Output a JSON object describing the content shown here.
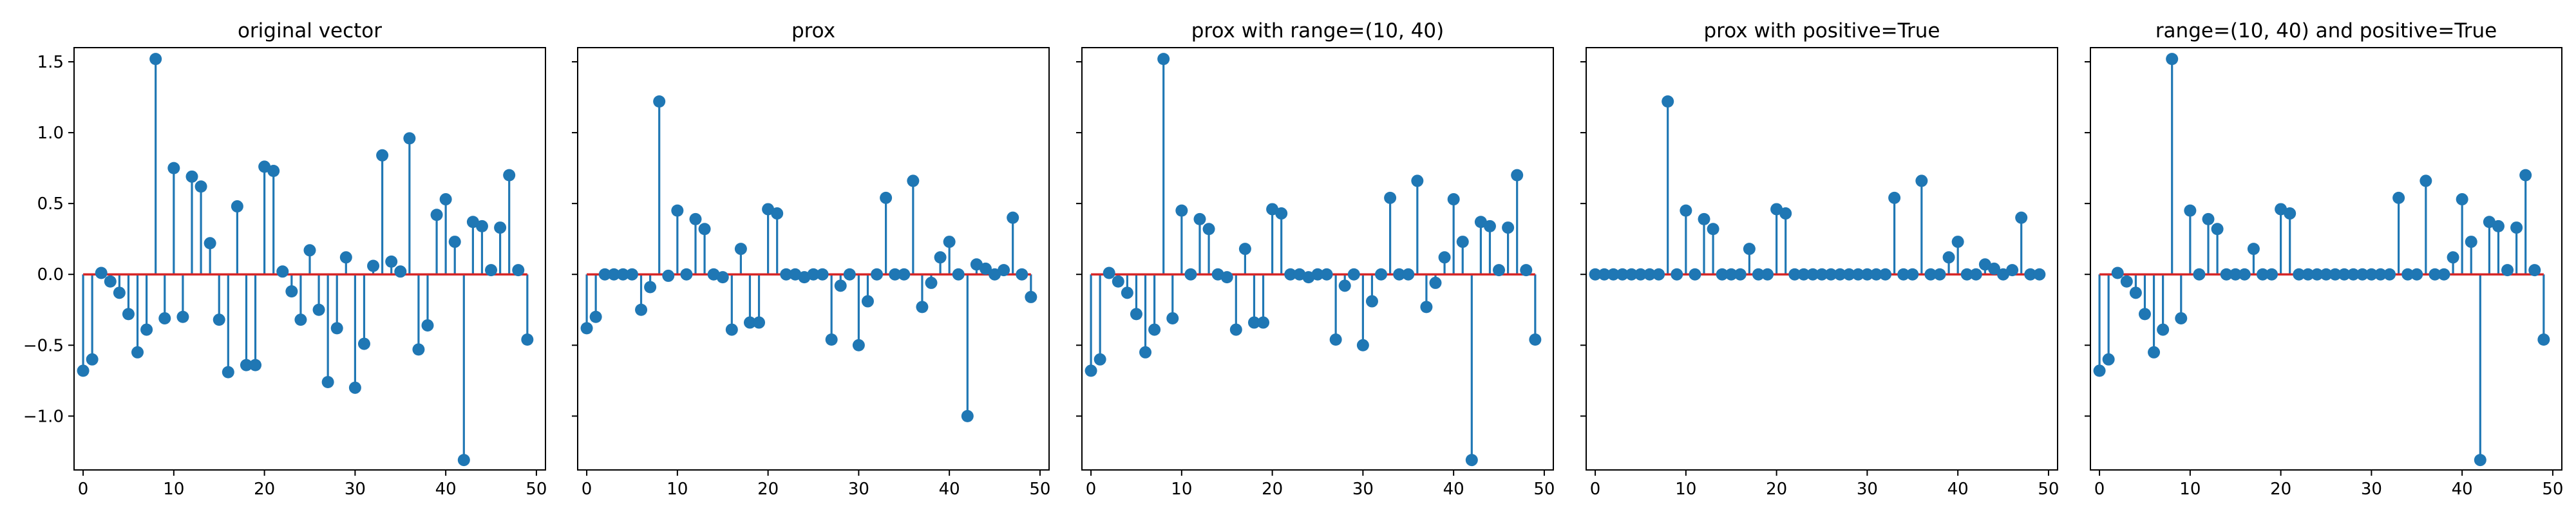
{
  "chart_data": [
    {
      "type": "stem",
      "title": "original vector",
      "x": [
        0,
        1,
        2,
        3,
        4,
        5,
        6,
        7,
        8,
        9,
        10,
        11,
        12,
        13,
        14,
        15,
        16,
        17,
        18,
        19,
        20,
        21,
        22,
        23,
        24,
        25,
        26,
        27,
        28,
        29,
        30,
        31,
        32,
        33,
        34,
        35,
        36,
        37,
        38,
        39,
        40,
        41,
        42,
        43,
        44,
        45,
        46,
        47,
        48,
        49
      ],
      "values": [
        -0.68,
        -0.6,
        0.01,
        -0.05,
        -0.13,
        -0.28,
        -0.55,
        -0.39,
        1.52,
        -0.31,
        0.75,
        -0.3,
        0.69,
        0.62,
        0.22,
        -0.32,
        -0.69,
        0.48,
        -0.64,
        -0.64,
        0.76,
        0.73,
        0.02,
        -0.12,
        -0.32,
        0.17,
        -0.25,
        -0.76,
        -0.38,
        0.12,
        -0.8,
        -0.49,
        0.06,
        0.84,
        0.09,
        0.02,
        0.96,
        -0.53,
        -0.36,
        0.42,
        0.53,
        0.23,
        -1.31,
        0.37,
        0.34,
        0.03,
        0.33,
        0.7,
        0.03,
        -0.46
      ],
      "xlim": [
        -1,
        51
      ],
      "ylim": [
        -1.38,
        1.6
      ],
      "xticks": [
        0,
        10,
        20,
        30,
        40,
        50
      ],
      "yticks": [
        -1.0,
        -0.5,
        0.0,
        0.5,
        1.0,
        1.5
      ],
      "ytick_labels_shown": true
    },
    {
      "type": "stem",
      "title": "prox",
      "x": [
        0,
        1,
        2,
        3,
        4,
        5,
        6,
        7,
        8,
        9,
        10,
        11,
        12,
        13,
        14,
        15,
        16,
        17,
        18,
        19,
        20,
        21,
        22,
        23,
        24,
        25,
        26,
        27,
        28,
        29,
        30,
        31,
        32,
        33,
        34,
        35,
        36,
        37,
        38,
        39,
        40,
        41,
        42,
        43,
        44,
        45,
        46,
        47,
        48,
        49
      ],
      "values": [
        -0.38,
        -0.3,
        0,
        0,
        0,
        0,
        -0.25,
        -0.09,
        1.22,
        -0.01,
        0.45,
        0,
        0.39,
        0.32,
        0,
        -0.02,
        -0.39,
        0.18,
        -0.34,
        -0.34,
        0.46,
        0.43,
        0,
        0,
        -0.02,
        0,
        0,
        -0.46,
        -0.08,
        0,
        -0.5,
        -0.19,
        0,
        0.54,
        0,
        0,
        0.66,
        -0.23,
        -0.06,
        0.12,
        0.23,
        0,
        -1.0,
        0.07,
        0.04,
        0,
        0.03,
        0.4,
        0,
        -0.16
      ],
      "xlim": [
        -1,
        51
      ],
      "ylim": [
        -1.38,
        1.6
      ],
      "xticks": [
        0,
        10,
        20,
        30,
        40,
        50
      ],
      "yticks": [
        -1.0,
        -0.5,
        0.0,
        0.5,
        1.0,
        1.5
      ],
      "ytick_labels_shown": false
    },
    {
      "type": "stem",
      "title": "prox with range=(10, 40)",
      "x": [
        0,
        1,
        2,
        3,
        4,
        5,
        6,
        7,
        8,
        9,
        10,
        11,
        12,
        13,
        14,
        15,
        16,
        17,
        18,
        19,
        20,
        21,
        22,
        23,
        24,
        25,
        26,
        27,
        28,
        29,
        30,
        31,
        32,
        33,
        34,
        35,
        36,
        37,
        38,
        39,
        40,
        41,
        42,
        43,
        44,
        45,
        46,
        47,
        48,
        49
      ],
      "values": [
        -0.68,
        -0.6,
        0.01,
        -0.05,
        -0.13,
        -0.28,
        -0.55,
        -0.39,
        1.52,
        -0.31,
        0.45,
        0,
        0.39,
        0.32,
        0,
        -0.02,
        -0.39,
        0.18,
        -0.34,
        -0.34,
        0.46,
        0.43,
        0,
        0,
        -0.02,
        0,
        0,
        -0.46,
        -0.08,
        0,
        -0.5,
        -0.19,
        0,
        0.54,
        0,
        0,
        0.66,
        -0.23,
        -0.06,
        0.12,
        0.53,
        0.23,
        -1.31,
        0.37,
        0.34,
        0.03,
        0.33,
        0.7,
        0.03,
        -0.46
      ],
      "xlim": [
        -1,
        51
      ],
      "ylim": [
        -1.38,
        1.6
      ],
      "xticks": [
        0,
        10,
        20,
        30,
        40,
        50
      ],
      "yticks": [
        -1.0,
        -0.5,
        0.0,
        0.5,
        1.0,
        1.5
      ],
      "ytick_labels_shown": false
    },
    {
      "type": "stem",
      "title": "prox with positive=True",
      "x": [
        0,
        1,
        2,
        3,
        4,
        5,
        6,
        7,
        8,
        9,
        10,
        11,
        12,
        13,
        14,
        15,
        16,
        17,
        18,
        19,
        20,
        21,
        22,
        23,
        24,
        25,
        26,
        27,
        28,
        29,
        30,
        31,
        32,
        33,
        34,
        35,
        36,
        37,
        38,
        39,
        40,
        41,
        42,
        43,
        44,
        45,
        46,
        47,
        48,
        49
      ],
      "values": [
        0,
        0,
        0,
        0,
        0,
        0,
        0,
        0,
        1.22,
        0,
        0.45,
        0,
        0.39,
        0.32,
        0,
        0,
        0,
        0.18,
        0,
        0,
        0.46,
        0.43,
        0,
        0,
        0,
        0,
        0,
        0,
        0,
        0,
        0,
        0,
        0,
        0.54,
        0,
        0,
        0.66,
        0,
        0,
        0.12,
        0.23,
        0,
        0,
        0.07,
        0.04,
        0,
        0.03,
        0.4,
        0,
        0
      ],
      "xlim": [
        -1,
        51
      ],
      "ylim": [
        -1.38,
        1.6
      ],
      "xticks": [
        0,
        10,
        20,
        30,
        40,
        50
      ],
      "yticks": [
        -1.0,
        -0.5,
        0.0,
        0.5,
        1.0,
        1.5
      ],
      "ytick_labels_shown": false
    },
    {
      "type": "stem",
      "title": "range=(10, 40) and positive=True",
      "x": [
        0,
        1,
        2,
        3,
        4,
        5,
        6,
        7,
        8,
        9,
        10,
        11,
        12,
        13,
        14,
        15,
        16,
        17,
        18,
        19,
        20,
        21,
        22,
        23,
        24,
        25,
        26,
        27,
        28,
        29,
        30,
        31,
        32,
        33,
        34,
        35,
        36,
        37,
        38,
        39,
        40,
        41,
        42,
        43,
        44,
        45,
        46,
        47,
        48,
        49
      ],
      "values": [
        -0.68,
        -0.6,
        0.01,
        -0.05,
        -0.13,
        -0.28,
        -0.55,
        -0.39,
        1.52,
        -0.31,
        0.45,
        0,
        0.39,
        0.32,
        0,
        0,
        0,
        0.18,
        0,
        0,
        0.46,
        0.43,
        0,
        0,
        0,
        0,
        0,
        0,
        0,
        0,
        0,
        0,
        0,
        0.54,
        0,
        0,
        0.66,
        0,
        0,
        0.12,
        0.53,
        0.23,
        -1.31,
        0.37,
        0.34,
        0.03,
        0.33,
        0.7,
        0.03,
        -0.46
      ],
      "xlim": [
        -1,
        51
      ],
      "ylim": [
        -1.38,
        1.6
      ],
      "xticks": [
        0,
        10,
        20,
        30,
        40,
        50
      ],
      "yticks": [
        -1.0,
        -0.5,
        0.0,
        0.5,
        1.0,
        1.5
      ],
      "ytick_labels_shown": false
    }
  ],
  "style": {
    "stem_color": "#1f77b4",
    "baseline_color": "#d62728",
    "marker_color": "#1f77b4"
  }
}
